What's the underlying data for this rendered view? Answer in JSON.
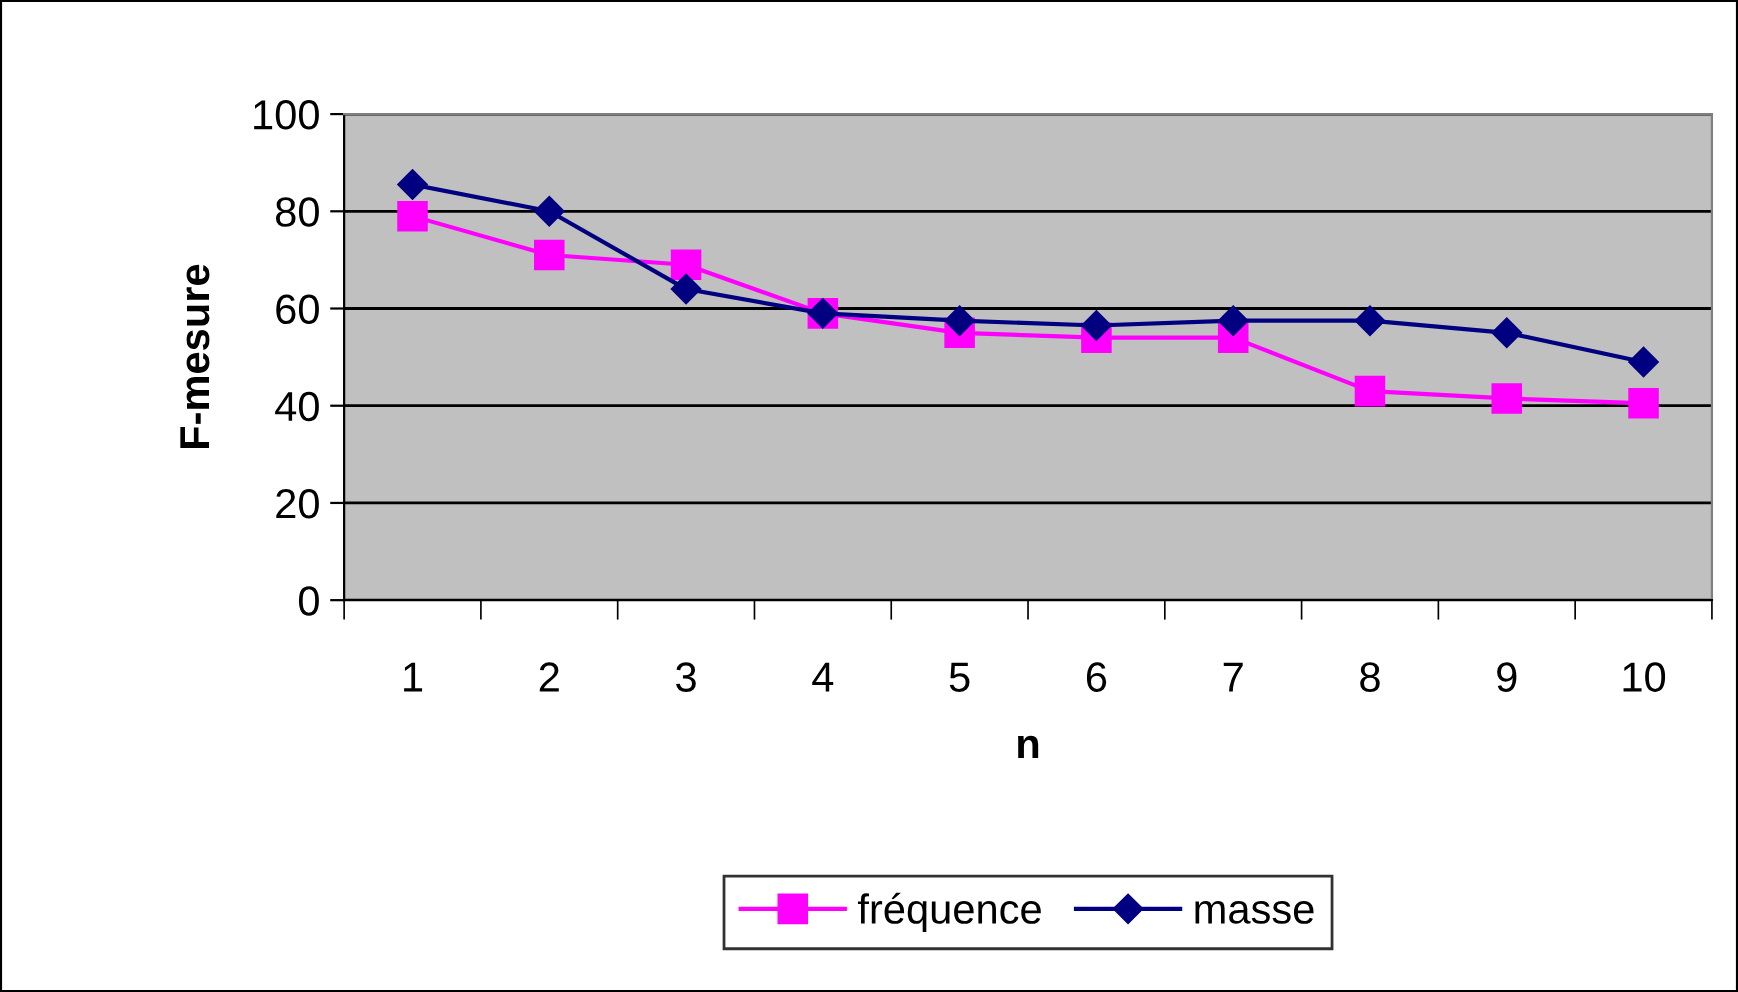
{
  "chart_data": {
    "type": "line",
    "xlabel": "n",
    "ylabel": "F-mesure",
    "categories": [
      "1",
      "2",
      "3",
      "4",
      "5",
      "6",
      "7",
      "8",
      "9",
      "10"
    ],
    "series": [
      {
        "name": "fréquence",
        "color": "#ff00ff",
        "marker": "square",
        "values": [
          79,
          71,
          69,
          59,
          55,
          54,
          54,
          43,
          41.5,
          40.5
        ]
      },
      {
        "name": "masse",
        "color": "#000080",
        "marker": "diamond",
        "values": [
          85.5,
          80,
          64,
          59,
          57.5,
          56.5,
          57.5,
          57.5,
          55,
          49
        ]
      }
    ],
    "ylim": [
      0,
      100
    ],
    "yticks": [
      0,
      20,
      40,
      60,
      80,
      100
    ],
    "grid": "y",
    "legend": "bottom",
    "line_style": "solid"
  }
}
